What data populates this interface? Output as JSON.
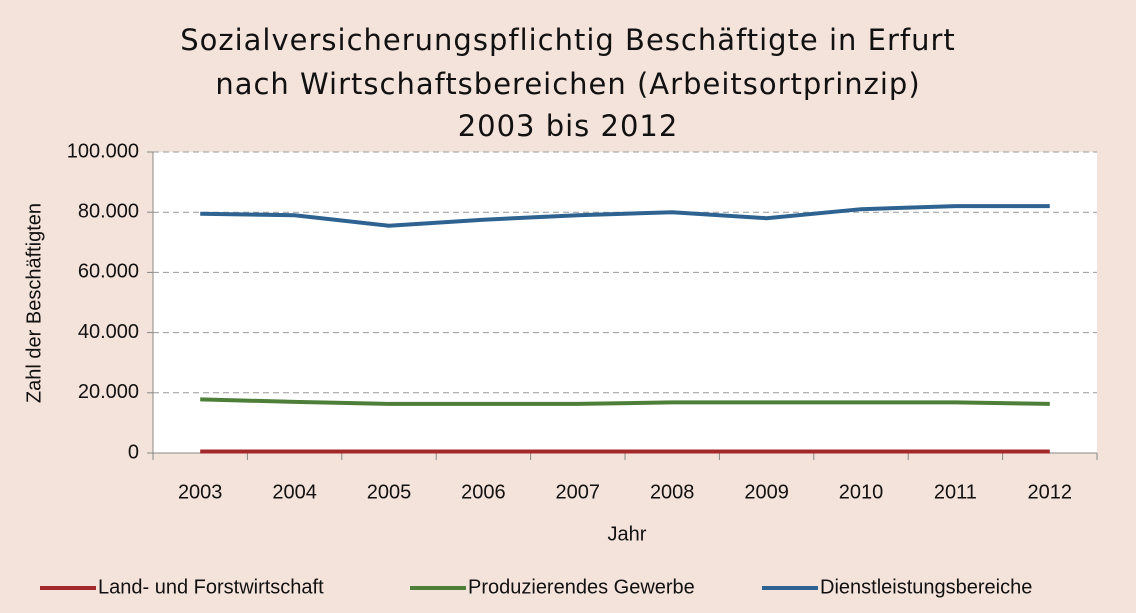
{
  "chart_data": {
    "type": "line",
    "title": [
      "Sozialversicherungspflichtig Beschäftigte in Erfurt",
      "nach Wirtschaftsbereichen (Arbeitsortprinzip)",
      "2003 bis 2012"
    ],
    "x_label": "Jahr",
    "y_label": "Zahl der Beschäftigten",
    "categories": [
      "2003",
      "2004",
      "2005",
      "2006",
      "2007",
      "2008",
      "2009",
      "2010",
      "2011",
      "2012"
    ],
    "series": [
      {
        "name": "Land- und Forstwirtschaft",
        "color": "#a3282a",
        "values": [
          500,
          500,
          500,
          500,
          500,
          500,
          500,
          500,
          500,
          500
        ]
      },
      {
        "name": "Produzierendes Gewerbe",
        "color": "#4e7f38",
        "values": [
          17800,
          17000,
          16300,
          16300,
          16300,
          16800,
          16800,
          16800,
          16800,
          16300
        ]
      },
      {
        "name": "Dienstleistungsbereiche",
        "color": "#2e6391",
        "values": [
          79500,
          79000,
          75500,
          77500,
          79000,
          80000,
          78000,
          81000,
          82000,
          82000
        ]
      }
    ],
    "ylim": [
      0,
      100000
    ],
    "yticks": [
      0,
      {
        "value": 20000,
        "label": "20.000"
      },
      {
        "value": 40000,
        "label": "40.000"
      },
      {
        "value": 60000,
        "label": "60.000"
      },
      {
        "value": 80000,
        "label": "80.000"
      },
      {
        "value": 100000,
        "label": "100.000"
      }
    ],
    "grid": true,
    "legend": "bottom"
  }
}
